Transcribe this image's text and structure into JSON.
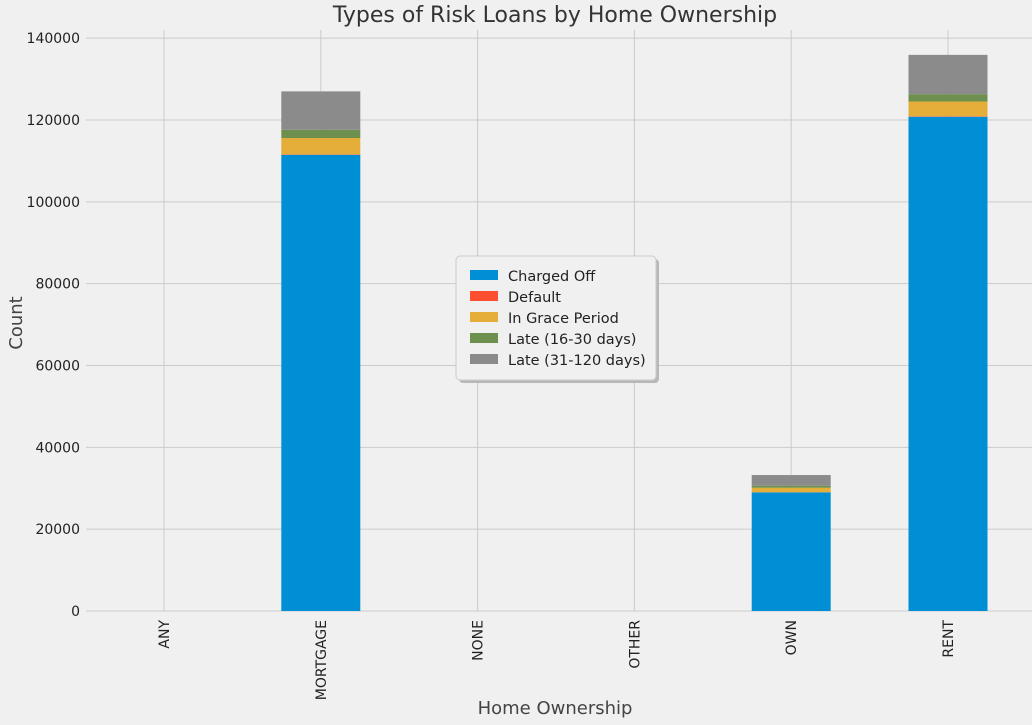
{
  "chart_data": {
    "type": "bar",
    "stacked": true,
    "title": "Types of Risk Loans by Home Ownership",
    "xlabel": "Home Ownership",
    "ylabel": "Count",
    "categories": [
      "ANY",
      "MORTGAGE",
      "NONE",
      "OTHER",
      "OWN",
      "RENT"
    ],
    "ylim": [
      0,
      142000
    ],
    "yticks": [
      0,
      20000,
      40000,
      60000,
      80000,
      100000,
      120000,
      140000
    ],
    "grid": true,
    "legend_position": "center",
    "series": [
      {
        "name": "Charged Off",
        "color": "#008fd5",
        "values": [
          0,
          111500,
          0,
          0,
          29000,
          120800
        ]
      },
      {
        "name": "Default",
        "color": "#fc4f30",
        "values": [
          0,
          100,
          0,
          0,
          30,
          120
        ]
      },
      {
        "name": "In Grace Period",
        "color": "#e5ae38",
        "values": [
          0,
          4000,
          0,
          0,
          1100,
          3600
        ]
      },
      {
        "name": "Late (16-30 days)",
        "color": "#6d904f",
        "values": [
          0,
          2000,
          0,
          0,
          500,
          1800
        ]
      },
      {
        "name": "Late (31-120 days)",
        "color": "#8b8b8b",
        "values": [
          0,
          9400,
          0,
          0,
          2600,
          9600
        ]
      }
    ]
  }
}
